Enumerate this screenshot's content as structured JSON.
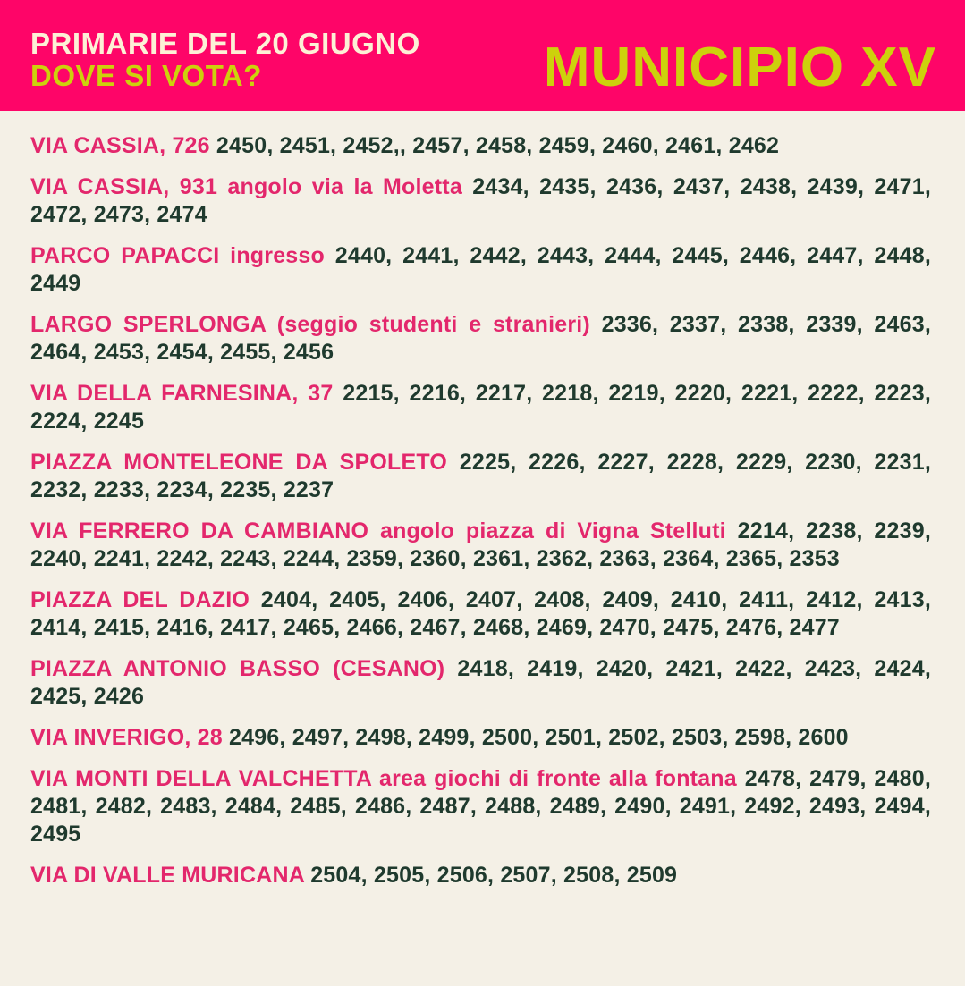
{
  "header": {
    "line1": "PRIMARIE DEL 20 GIUGNO",
    "line2": "DOVE SI VOTA?",
    "municipio": "MUNICIPIO XV"
  },
  "colors": {
    "header_bg": "#fe0568",
    "accent_yellow": "#cdd10c",
    "place_pink": "#e3276c",
    "numbers": "#1f3a2e",
    "background": "#f4f0e6"
  },
  "entries": [
    {
      "place": "VIA CASSIA, 726",
      "numbers": "2450, 2451, 2452,, 2457, 2458, 2459, 2460, 2461, 2462"
    },
    {
      "place": "VIA CASSIA, 931 angolo via la Moletta",
      "numbers": "2434, 2435, 2436, 2437, 2438, 2439, 2471, 2472, 2473, 2474"
    },
    {
      "place": "PARCO PAPACCI ingresso",
      "numbers": "2440, 2441, 2442, 2443, 2444, 2445, 2446, 2447, 2448, 2449"
    },
    {
      "place": "LARGO SPERLONGA (seggio studenti e stranieri)",
      "numbers": "2336, 2337, 2338, 2339, 2463, 2464, 2453, 2454, 2455, 2456"
    },
    {
      "place": "VIA DELLA FARNESINA, 37",
      "numbers": "2215, 2216, 2217, 2218, 2219, 2220, 2221, 2222, 2223, 2224, 2245"
    },
    {
      "place": "PIAZZA MONTELEONE DA SPOLETO",
      "numbers": "2225, 2226, 2227, 2228, 2229, 2230, 2231, 2232, 2233, 2234, 2235, 2237"
    },
    {
      "place": "VIA FERRERO DA CAMBIANO angolo piazza di Vigna Stelluti",
      "numbers": "2214, 2238, 2239, 2240, 2241, 2242, 2243, 2244, 2359, 2360, 2361, 2362, 2363, 2364, 2365, 2353"
    },
    {
      "place": "PIAZZA DEL DAZIO",
      "numbers": "2404, 2405, 2406, 2407, 2408, 2409, 2410, 2411, 2412, 2413, 2414, 2415, 2416, 2417, 2465, 2466, 2467, 2468, 2469, 2470, 2475, 2476, 2477"
    },
    {
      "place": "PIAZZA ANTONIO BASSO (CESANO)",
      "numbers": "2418, 2419, 2420, 2421, 2422, 2423, 2424, 2425, 2426"
    },
    {
      "place": "VIA INVERIGO, 28",
      "numbers": "2496, 2497, 2498, 2499, 2500, 2501, 2502, 2503, 2598, 2600"
    },
    {
      "place": "VIA MONTI DELLA VALCHETTA area giochi di fronte alla fontana",
      "numbers": "2478, 2479, 2480, 2481, 2482, 2483, 2484, 2485, 2486, 2487, 2488, 2489, 2490, 2491, 2492, 2493, 2494, 2495"
    },
    {
      "place": "VIA DI VALLE MURICANA",
      "numbers": "2504, 2505, 2506, 2507, 2508, 2509"
    }
  ]
}
